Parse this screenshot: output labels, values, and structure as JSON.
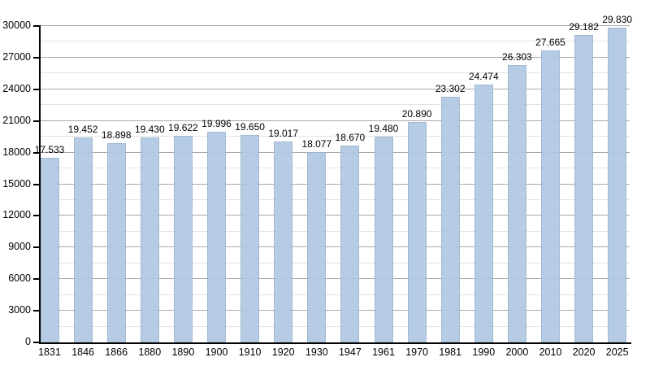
{
  "page": {
    "background_color": "#ffffff"
  },
  "chart_data": {
    "type": "bar",
    "title": "",
    "xlabel": "",
    "ylabel": "",
    "categories": [
      "1831",
      "1846",
      "1866",
      "1880",
      "1890",
      "1900",
      "1910",
      "1920",
      "1930",
      "1947",
      "1961",
      "1970",
      "1981",
      "1990",
      "2000",
      "2010",
      "2020",
      "2025"
    ],
    "values": [
      17533,
      19452,
      18898,
      19430,
      19622,
      19996,
      19650,
      19017,
      18077,
      18670,
      19480,
      20890,
      23302,
      24474,
      26303,
      27665,
      29182,
      29830
    ],
    "value_labels": [
      "17.533",
      "19.452",
      "18.898",
      "19.430",
      "19.622",
      "19.996",
      "19.650",
      "19.017",
      "18.077",
      "18.670",
      "19.480",
      "20.890",
      "23.302",
      "24.474",
      "26.303",
      "27.665",
      "29.182",
      "29.830"
    ],
    "ylim": [
      0,
      30000
    ],
    "y_major_step": 3000,
    "y_minor_step": 1500,
    "y_tick_labels": [
      "0",
      "3000",
      "6000",
      "9000",
      "12000",
      "15000",
      "18000",
      "21000",
      "24000",
      "27000",
      "30000"
    ],
    "grid": true,
    "legend": "none",
    "bar_color": "#b1c9e3",
    "major_grid_color": "#a9a9a9",
    "minor_grid_color": "#e3e3e3",
    "axis_color": "#000000",
    "text_color": "#000000"
  }
}
